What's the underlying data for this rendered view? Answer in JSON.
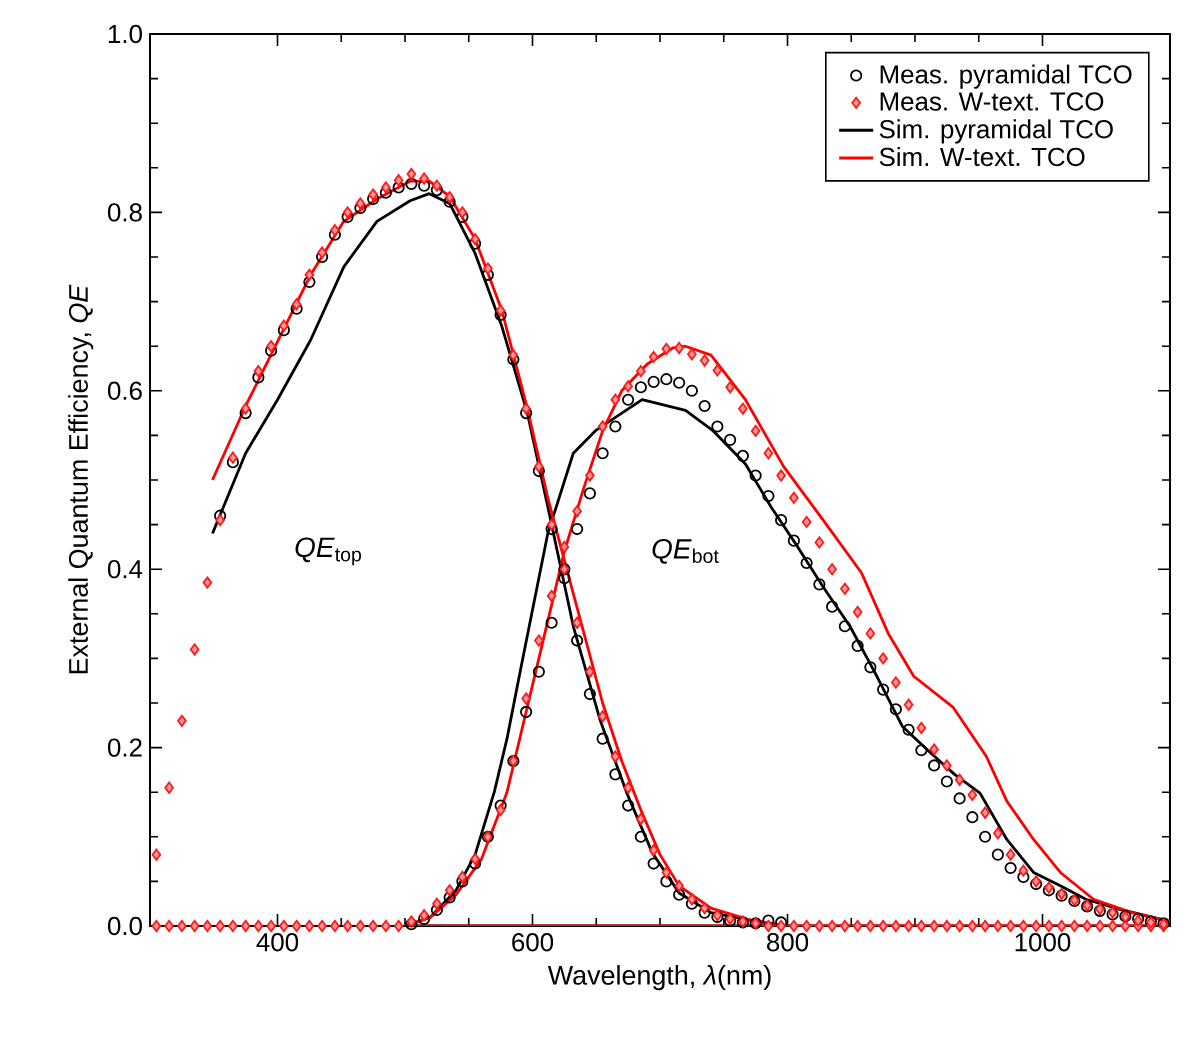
{
  "chart_data": {
    "type": "line",
    "xlabel": "Wavelength, *λ*(nm)",
    "ylabel": "External Quantum Efficiency, *QE*",
    "xlim": [
      300,
      1100
    ],
    "ylim": [
      0,
      1
    ],
    "xticks": [
      400,
      600,
      800,
      1000
    ],
    "yticks": [
      {
        "value": 0,
        "label": "0.0"
      },
      {
        "value": 0.2,
        "label": "0.2"
      },
      {
        "value": 0.4,
        "label": "0.4"
      },
      {
        "value": 0.6,
        "label": "0.6"
      },
      {
        "value": 0.8,
        "label": "0.8"
      },
      {
        "value": 1,
        "label": "1.0"
      }
    ],
    "legend": "top right",
    "annotations": [
      "*QE*$_{top}$",
      "*QE*$_{bot}$"
    ],
    "series": [
      {
        "name": "Meas. pyramidal TCO",
        "type": "scatter",
        "marker": "circle",
        "color": "#000000",
        "x": [
          355,
          365,
          375,
          385,
          395,
          405,
          415,
          425,
          435,
          445,
          455,
          465,
          475,
          485,
          495,
          505,
          515,
          525,
          535,
          545,
          555,
          565,
          575,
          585,
          595,
          605,
          615,
          625,
          635,
          645,
          655,
          665,
          675,
          685,
          695,
          705,
          715,
          725,
          735,
          745,
          755,
          765,
          775,
          785,
          795,
          505,
          515,
          525,
          535,
          545,
          555,
          565,
          575,
          585,
          595,
          605,
          615,
          625,
          635,
          645,
          655,
          665,
          675,
          685,
          695,
          705,
          715,
          725,
          735,
          745,
          755,
          765,
          775,
          785,
          795,
          805,
          815,
          825,
          835,
          845,
          855,
          865,
          875,
          885,
          895,
          905,
          915,
          925,
          935,
          945,
          955,
          965,
          975,
          985,
          995,
          1005,
          1015,
          1025,
          1035,
          1045,
          1055,
          1065,
          1075,
          1085,
          1095
        ],
        "values": [
          0.46,
          0.52,
          0.575,
          0.615,
          0.645,
          0.668,
          0.692,
          0.722,
          0.75,
          0.775,
          0.795,
          0.805,
          0.815,
          0.822,
          0.828,
          0.832,
          0.83,
          0.825,
          0.812,
          0.795,
          0.765,
          0.73,
          0.685,
          0.635,
          0.575,
          0.51,
          0.445,
          0.39,
          0.32,
          0.26,
          0.21,
          0.17,
          0.135,
          0.1,
          0.07,
          0.05,
          0.035,
          0.025,
          0.015,
          0.01,
          0.006,
          0.004,
          0.003,
          0.006,
          0.004,
          0.002,
          0.008,
          0.018,
          0.032,
          0.05,
          0.07,
          0.1,
          0.135,
          0.185,
          0.24,
          0.285,
          0.34,
          0.4,
          0.445,
          0.485,
          0.53,
          0.56,
          0.59,
          0.604,
          0.61,
          0.613,
          0.609,
          0.6,
          0.583,
          0.56,
          0.545,
          0.527,
          0.505,
          0.482,
          0.455,
          0.432,
          0.407,
          0.383,
          0.358,
          0.336,
          0.314,
          0.29,
          0.265,
          0.243,
          0.22,
          0.197,
          0.18,
          0.162,
          0.143,
          0.122,
          0.1,
          0.08,
          0.065,
          0.055,
          0.047,
          0.04,
          0.034,
          0.028,
          0.022,
          0.017,
          0.013,
          0.011,
          0.008,
          0.005,
          0.003
        ]
      },
      {
        "name": "Meas. W-text. TCO",
        "type": "scatter",
        "marker": "diamond",
        "color": "#ff1a1a",
        "x": [
          305,
          315,
          325,
          335,
          345,
          355,
          365,
          375,
          385,
          395,
          405,
          415,
          425,
          435,
          445,
          455,
          465,
          475,
          485,
          495,
          505,
          515,
          525,
          535,
          545,
          555,
          565,
          575,
          585,
          595,
          605,
          615,
          625,
          635,
          645,
          655,
          665,
          675,
          685,
          695,
          705,
          715,
          725,
          735,
          745,
          755,
          765,
          775,
          785,
          795,
          805,
          815,
          825,
          835,
          845,
          855,
          865,
          875,
          885,
          895,
          905,
          915,
          925,
          935,
          945,
          955,
          965,
          975,
          985,
          995,
          1005,
          1015,
          1025,
          1035,
          1045,
          1055,
          1065,
          1075,
          1085,
          1095,
          305,
          315,
          325,
          335,
          345,
          355,
          365,
          375,
          385,
          395,
          405,
          415,
          425,
          435,
          445,
          455,
          465,
          475,
          485,
          495,
          505,
          515,
          525,
          535,
          545,
          555,
          565,
          575,
          585,
          595,
          605,
          615,
          625,
          635,
          645,
          655,
          665,
          675,
          685,
          695,
          705,
          715,
          725,
          735,
          745,
          755,
          765,
          775,
          785,
          795,
          805,
          815,
          825,
          835,
          845,
          855,
          865,
          875,
          885,
          895,
          905,
          915,
          925,
          935,
          945,
          955,
          965,
          975,
          985,
          995,
          1005,
          1015,
          1025,
          1035,
          1045,
          1055,
          1065,
          1075,
          1085,
          1095
        ],
        "values": [
          0.08,
          0.155,
          0.23,
          0.31,
          0.385,
          0.455,
          0.525,
          0.58,
          0.622,
          0.65,
          0.673,
          0.697,
          0.73,
          0.755,
          0.78,
          0.8,
          0.81,
          0.82,
          0.828,
          0.836,
          0.843,
          0.838,
          0.83,
          0.817,
          0.8,
          0.77,
          0.737,
          0.69,
          0.64,
          0.58,
          0.515,
          0.45,
          0.4,
          0.34,
          0.285,
          0.235,
          0.19,
          0.155,
          0.12,
          0.085,
          0.06,
          0.045,
          0.03,
          0.02,
          0.012,
          0.008,
          0.005,
          0.003,
          0,
          0,
          0,
          0,
          0,
          0,
          0,
          0,
          0,
          0,
          0,
          0,
          0,
          0,
          0,
          0,
          0,
          0,
          0,
          0,
          0,
          0,
          0,
          0,
          0,
          0,
          0,
          0,
          0,
          0,
          0,
          0,
          0,
          0,
          0,
          0,
          0,
          0,
          0,
          0,
          0,
          0,
          0,
          0,
          0,
          0,
          0,
          0,
          0,
          0,
          0,
          0,
          0.005,
          0.012,
          0.025,
          0.04,
          0.055,
          0.075,
          0.1,
          0.13,
          0.185,
          0.255,
          0.32,
          0.37,
          0.425,
          0.465,
          0.505,
          0.56,
          0.59,
          0.605,
          0.622,
          0.638,
          0.647,
          0.648,
          0.641,
          0.634,
          0.623,
          0.604,
          0.58,
          0.555,
          0.53,
          0.505,
          0.48,
          0.453,
          0.43,
          0.4,
          0.378,
          0.352,
          0.328,
          0.3,
          0.273,
          0.248,
          0.222,
          0.198,
          0.18,
          0.164,
          0.147,
          0.127,
          0.104,
          0.08,
          0.062,
          0.05,
          0.043,
          0.036,
          0.029,
          0.023,
          0.019,
          0.015,
          0.01,
          0.006,
          0.004,
          0.002
        ]
      },
      {
        "name": "Sim. pyramidal TCO",
        "line_style": "solid",
        "color": "#000000",
        "x": [
          349,
          375,
          400,
          426,
          452,
          478,
          504,
          519,
          535,
          555,
          576,
          596,
          612,
          632,
          653,
          674,
          694,
          715,
          740,
          777,
          800,
          1100,
          500,
          520,
          540,
          555,
          570,
          580,
          591,
          612,
          632,
          650,
          686,
          720,
          741,
          767,
          787,
          808,
          828,
          849,
          869,
          890,
          910,
          931,
          951,
          972,
          993,
          1014,
          1034,
          1060,
          1086,
          1100
        ],
        "values": [
          0.44,
          0.53,
          0.59,
          0.657,
          0.739,
          0.79,
          0.813,
          0.821,
          0.81,
          0.754,
          0.672,
          0.575,
          0.47,
          0.336,
          0.231,
          0.149,
          0.082,
          0.037,
          0.015,
          0.005,
          0,
          0,
          0,
          0.01,
          0.04,
          0.08,
          0.15,
          0.21,
          0.29,
          0.44,
          0.53,
          0.556,
          0.59,
          0.578,
          0.556,
          0.518,
          0.47,
          0.425,
          0.38,
          0.336,
          0.283,
          0.224,
          0.197,
          0.17,
          0.149,
          0.097,
          0.06,
          0.045,
          0.03,
          0.019,
          0.01,
          0.005
        ]
      },
      {
        "name": "Sim. W-text. TCO",
        "line_style": "solid",
        "color": "#ff0000",
        "x": [
          349,
          375,
          400,
          426,
          452,
          478,
          504,
          519,
          535,
          555,
          576,
          596,
          612,
          625,
          640,
          655,
          670,
          685,
          700,
          715,
          740,
          770,
          800,
          1100,
          500,
          520,
          540,
          560,
          580,
          595,
          610,
          625,
          640,
          655,
          670,
          690,
          710,
          720,
          740,
          767,
          797,
          828,
          858,
          879,
          899,
          930,
          956,
          972,
          993,
          1014,
          1040,
          1070,
          1100
        ],
        "values": [
          0.5,
          0.583,
          0.655,
          0.73,
          0.79,
          0.815,
          0.835,
          0.835,
          0.818,
          0.77,
          0.69,
          0.58,
          0.48,
          0.41,
          0.33,
          0.25,
          0.185,
          0.13,
          0.08,
          0.045,
          0.02,
          0.007,
          0,
          0,
          0,
          0.01,
          0.035,
          0.075,
          0.15,
          0.24,
          0.33,
          0.42,
          0.49,
          0.555,
          0.6,
          0.63,
          0.648,
          0.65,
          0.64,
          0.59,
          0.515,
          0.455,
          0.396,
          0.328,
          0.28,
          0.245,
          0.19,
          0.14,
          0.097,
          0.06,
          0.03,
          0.015,
          0.005
        ]
      }
    ]
  }
}
